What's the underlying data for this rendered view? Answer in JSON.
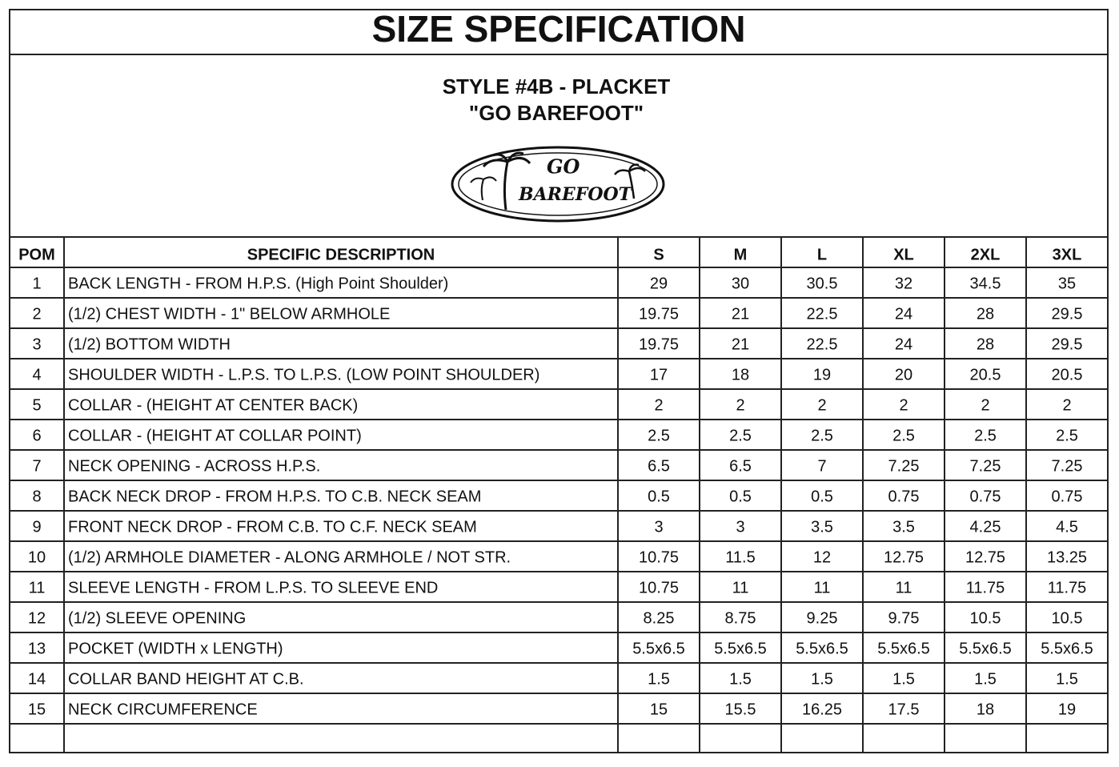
{
  "header": {
    "title": "SIZE SPECIFICATION",
    "style": "STYLE #4B - PLACKET",
    "subtitle": "\"GO BAREFOOT\""
  },
  "logo": {
    "line1": "GO",
    "line2": "BAREFOOT"
  },
  "table": {
    "columns": [
      "POM",
      "SPECIFIC DESCRIPTION",
      "S",
      "M",
      "L",
      "XL",
      "2XL",
      "3XL"
    ],
    "rows": [
      [
        "1",
        "BACK LENGTH - FROM H.P.S. (High Point Shoulder)",
        "29",
        "30",
        "30.5",
        "32",
        "34.5",
        "35"
      ],
      [
        "2",
        "(1/2) CHEST WIDTH - 1\" BELOW ARMHOLE",
        "19.75",
        "21",
        "22.5",
        "24",
        "28",
        "29.5"
      ],
      [
        "3",
        "(1/2) BOTTOM WIDTH",
        "19.75",
        "21",
        "22.5",
        "24",
        "28",
        "29.5"
      ],
      [
        "4",
        "SHOULDER WIDTH - L.P.S. TO L.P.S. (LOW POINT SHOULDER)",
        "17",
        "18",
        "19",
        "20",
        "20.5",
        "20.5"
      ],
      [
        "5",
        "COLLAR - (HEIGHT AT CENTER BACK)",
        "2",
        "2",
        "2",
        "2",
        "2",
        "2"
      ],
      [
        "6",
        "COLLAR - (HEIGHT AT COLLAR POINT)",
        "2.5",
        "2.5",
        "2.5",
        "2.5",
        "2.5",
        "2.5"
      ],
      [
        "7",
        "NECK OPENING - ACROSS H.P.S.",
        "6.5",
        "6.5",
        "7",
        "7.25",
        "7.25",
        "7.25"
      ],
      [
        "8",
        "BACK NECK DROP - FROM H.P.S. TO C.B. NECK SEAM",
        "0.5",
        "0.5",
        "0.5",
        "0.75",
        "0.75",
        "0.75"
      ],
      [
        "9",
        "FRONT NECK DROP - FROM C.B. TO C.F. NECK SEAM",
        "3",
        "3",
        "3.5",
        "3.5",
        "4.25",
        "4.5"
      ],
      [
        "10",
        "(1/2) ARMHOLE DIAMETER - ALONG ARMHOLE / NOT STR.",
        "10.75",
        "11.5",
        "12",
        "12.75",
        "12.75",
        "13.25"
      ],
      [
        "11",
        "SLEEVE LENGTH - FROM L.P.S. TO SLEEVE END",
        "10.75",
        "11",
        "11",
        "11",
        "11.75",
        "11.75"
      ],
      [
        "12",
        "(1/2) SLEEVE OPENING",
        "8.25",
        "8.75",
        "9.25",
        "9.75",
        "10.5",
        "10.5"
      ],
      [
        "13",
        "POCKET (WIDTH x LENGTH)",
        "5.5x6.5",
        "5.5x6.5",
        "5.5x6.5",
        "5.5x6.5",
        "5.5x6.5",
        "5.5x6.5"
      ],
      [
        "14",
        "COLLAR BAND HEIGHT AT C.B.",
        "1.5",
        "1.5",
        "1.5",
        "1.5",
        "1.5",
        "1.5"
      ],
      [
        "15",
        "NECK CIRCUMFERENCE",
        "15",
        "15.5",
        "16.25",
        "17.5",
        "18",
        "19"
      ]
    ]
  }
}
